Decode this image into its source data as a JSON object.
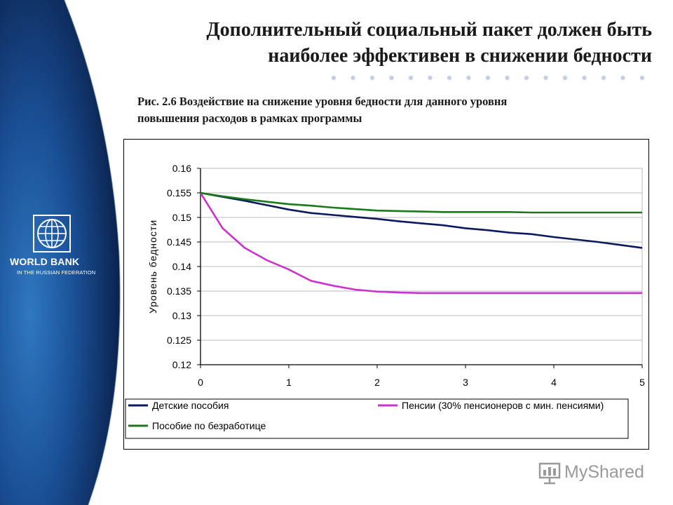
{
  "slide": {
    "title_line1": "Дополнительный социальный пакет должен быть",
    "title_line2": "наиболее эффективен в снижении бедности",
    "caption_line1": "Рис. 2.6  Воздействие на снижение уровня бедности для данного уровня",
    "caption_line2": "повышения  расходов в рамках программы"
  },
  "logo": {
    "name": "WORLD BANK",
    "subtitle": "IN THE RUSSIAN FEDERATION",
    "icon": "globe-icon"
  },
  "watermark": {
    "text": "MyShared",
    "icon": "presentation-icon"
  },
  "colors": {
    "sidebar_dark": "#0b1f4a",
    "sidebar_mid": "#1f5aa3",
    "series_children": "#0a1a5c",
    "series_pensions": "#cc33cc",
    "series_unemployment": "#1a7a1a",
    "dots": "#c6cfe3"
  },
  "chart_data": {
    "type": "line",
    "title": "",
    "xlabel": "",
    "ylabel": "Уровень бедности",
    "xlim": [
      0,
      5
    ],
    "ylim": [
      0.12,
      0.16
    ],
    "x_ticks": [
      "0",
      "1",
      "2",
      "3",
      "4",
      "5"
    ],
    "y_ticks": [
      "0.16",
      "0.155",
      "0.15",
      "0.145",
      "0.14",
      "0.135",
      "0.13",
      "0.125",
      "0.12"
    ],
    "grid": "horizontal",
    "legend_position": "bottom",
    "x": [
      0,
      0.25,
      0.5,
      0.75,
      1,
      1.25,
      1.5,
      1.75,
      2,
      2.25,
      2.5,
      2.75,
      3,
      3.25,
      3.5,
      3.75,
      4,
      4.25,
      4.5,
      4.75,
      5
    ],
    "series": [
      {
        "name": "Детские пособия",
        "color": "#0a1a5c",
        "values": [
          0.155,
          0.1542,
          0.1534,
          0.1525,
          0.1516,
          0.1509,
          0.1505,
          0.1501,
          0.1497,
          0.1492,
          0.1488,
          0.1484,
          0.1478,
          0.1474,
          0.1469,
          0.1466,
          0.146,
          0.1455,
          0.145,
          0.1444,
          0.1438
        ]
      },
      {
        "name": "Пенсии (30% пенсионеров с мин. пенсиями)",
        "color": "#cc33cc",
        "values": [
          0.155,
          0.1478,
          0.1438,
          0.1413,
          0.1394,
          0.1371,
          0.1361,
          0.1353,
          0.1349,
          0.1347,
          0.1346,
          0.1346,
          0.1346,
          0.1346,
          0.1346,
          0.1346,
          0.1346,
          0.1346,
          0.1346,
          0.1346,
          0.1346
        ]
      },
      {
        "name": "Пособие по безработице",
        "color": "#1a7a1a",
        "values": [
          0.155,
          0.1543,
          0.1537,
          0.1532,
          0.1527,
          0.1524,
          0.152,
          0.1517,
          0.1514,
          0.1513,
          0.1512,
          0.1511,
          0.1511,
          0.1511,
          0.1511,
          0.151,
          0.151,
          0.151,
          0.151,
          0.151,
          0.151
        ]
      }
    ]
  }
}
